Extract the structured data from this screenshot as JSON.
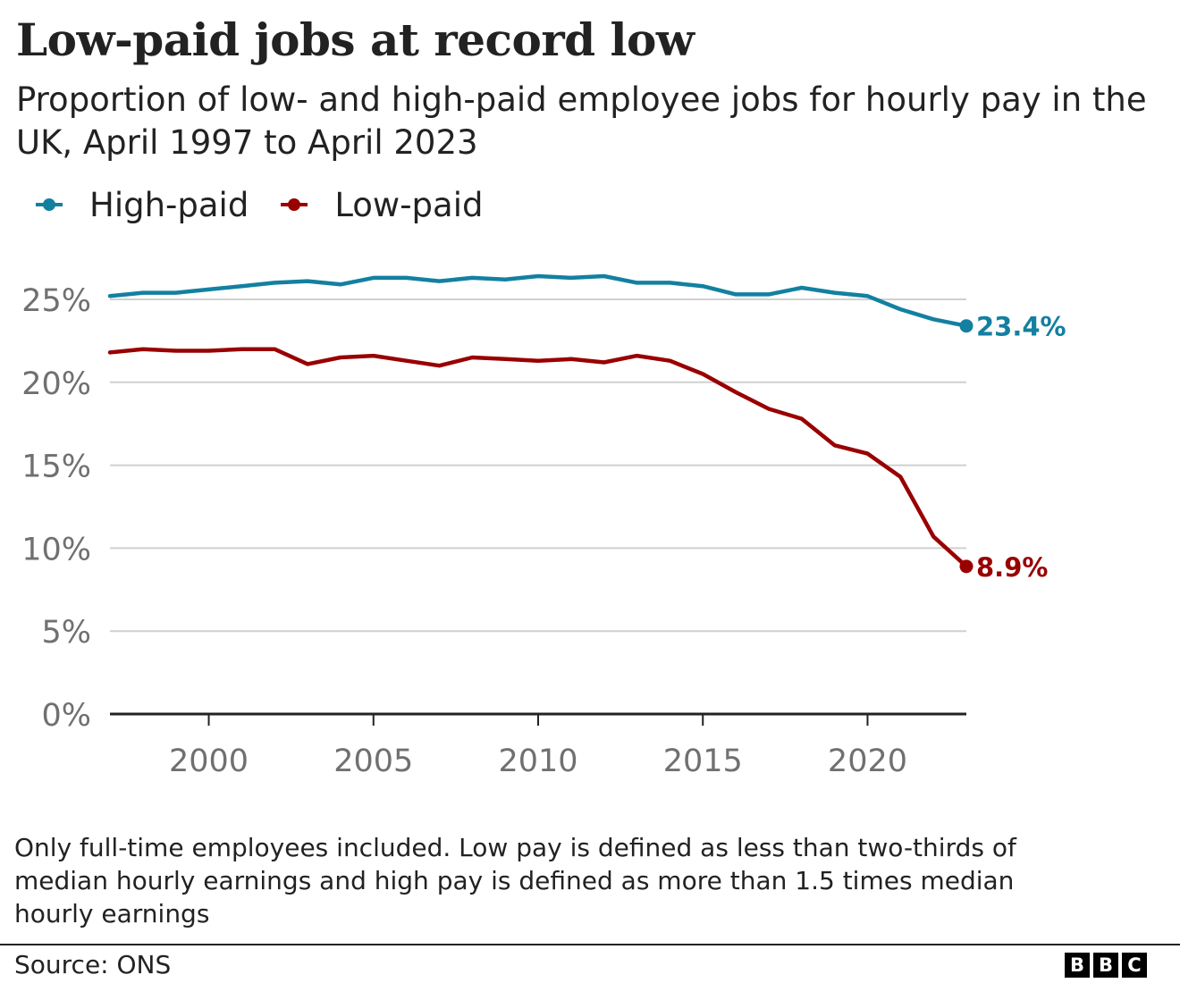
{
  "header": {
    "title": "Low-paid jobs at record low",
    "subtitle": "Proportion of low- and high-paid employee jobs for hourly pay in the UK, April 1997 to April 2023"
  },
  "legend": [
    {
      "label": "High-paid",
      "color": "#1380A1"
    },
    {
      "label": "Low-paid",
      "color": "#990000"
    }
  ],
  "chart_data": {
    "type": "line",
    "title": "Low-paid jobs at record low",
    "xlabel": "",
    "ylabel": "",
    "x": [
      1997,
      1998,
      1999,
      2000,
      2001,
      2002,
      2003,
      2004,
      2005,
      2006,
      2007,
      2008,
      2009,
      2010,
      2011,
      2012,
      2013,
      2014,
      2015,
      2016,
      2017,
      2018,
      2019,
      2020,
      2021,
      2022,
      2023
    ],
    "xlim": [
      1997,
      2023
    ],
    "ylim": [
      0,
      25
    ],
    "xticks": [
      2000,
      2005,
      2010,
      2015,
      2020
    ],
    "xtick_labels": [
      "2000",
      "2005",
      "2010",
      "2015",
      "2020"
    ],
    "yticks": [
      0,
      5,
      10,
      15,
      20,
      25
    ],
    "ytick_labels": [
      "0%",
      "5%",
      "10%",
      "15%",
      "20%",
      "25%"
    ],
    "grid": true,
    "legend_position": "top-left",
    "series": [
      {
        "name": "High-paid",
        "color": "#1380A1",
        "values": [
          25.2,
          25.4,
          25.4,
          25.6,
          25.8,
          26.0,
          26.1,
          25.9,
          26.3,
          26.3,
          26.1,
          26.3,
          26.2,
          26.4,
          26.3,
          26.4,
          26.0,
          26.0,
          25.8,
          25.3,
          25.3,
          25.7,
          25.4,
          25.2,
          24.4,
          23.8,
          23.4
        ],
        "end_label": "23.4%"
      },
      {
        "name": "Low-paid",
        "color": "#990000",
        "values": [
          21.8,
          22.0,
          21.9,
          21.9,
          22.0,
          22.0,
          21.1,
          21.5,
          21.6,
          21.3,
          21.0,
          21.5,
          21.4,
          21.3,
          21.4,
          21.2,
          21.6,
          21.3,
          20.5,
          19.4,
          18.4,
          17.8,
          16.2,
          15.7,
          14.3,
          10.7,
          8.9
        ],
        "end_label": "8.9%"
      }
    ]
  },
  "footer": {
    "note": "Only full-time employees included. Low pay is defined as less than two-thirds of median hourly earnings and high pay is defined as more than 1.5 times median hourly earnings",
    "source": "Source: ONS",
    "logo_letters": [
      "B",
      "B",
      "C"
    ]
  }
}
